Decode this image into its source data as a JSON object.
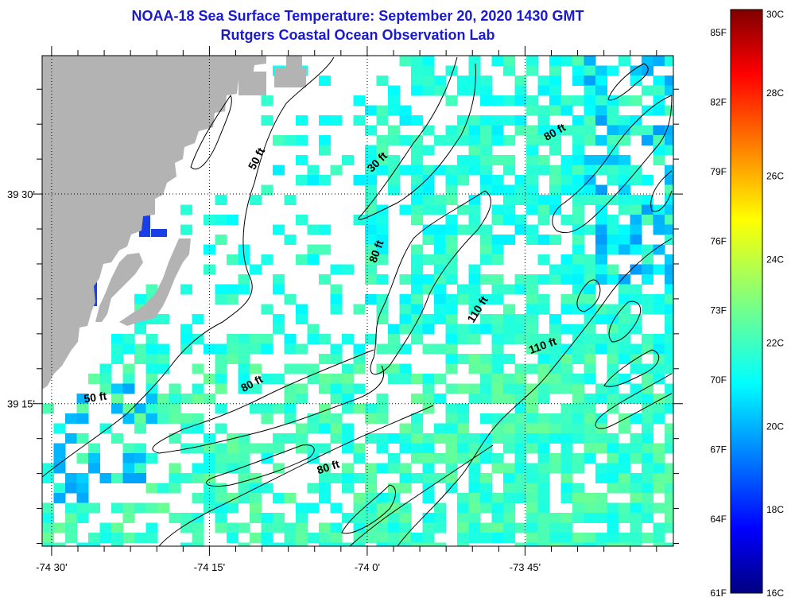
{
  "title": {
    "line1": "NOAA-18 Sea Surface Temperature:  September 20, 2020 1430 GMT",
    "line2": "Rutgers Coastal Ocean Observation Lab"
  },
  "map": {
    "lon_ticks": [
      {
        "value": -74.5,
        "label": "-74 30'"
      },
      {
        "value": -74.25,
        "label": "-74 15'"
      },
      {
        "value": -74.0,
        "label": "-74 0'"
      },
      {
        "value": -73.75,
        "label": "-73 45'"
      }
    ],
    "lat_ticks": [
      {
        "value": 39.5,
        "label": "39 30'"
      },
      {
        "value": 39.25,
        "label": "39 15'"
      }
    ],
    "lon_range": [
      -74.515,
      -73.515
    ],
    "lat_range": [
      39.08,
      39.665
    ],
    "contour_labels": [
      {
        "text": "50 ft",
        "lon": -74.17,
        "lat": 39.54,
        "rotate": -62
      },
      {
        "text": "30 ft",
        "lon": -73.98,
        "lat": 39.535,
        "rotate": -45
      },
      {
        "text": "80 ft",
        "lon": -73.7,
        "lat": 39.57,
        "rotate": -30
      },
      {
        "text": "80 ft",
        "lon": -73.98,
        "lat": 39.43,
        "rotate": -70
      },
      {
        "text": "110 ft",
        "lon": -73.82,
        "lat": 39.36,
        "rotate": -58
      },
      {
        "text": "110 ft",
        "lon": -73.72,
        "lat": 39.315,
        "rotate": -20
      },
      {
        "text": "80 ft",
        "lon": -74.18,
        "lat": 39.27,
        "rotate": -28
      },
      {
        "text": "50 ft",
        "lon": -74.43,
        "lat": 39.253,
        "rotate": -8
      },
      {
        "text": "80 ft",
        "lon": -74.06,
        "lat": 39.17,
        "rotate": -18
      }
    ],
    "colors": {
      "land": "#b3b3b3",
      "no_data": "#ffffff"
    }
  },
  "colorbar": {
    "min_c": 16,
    "max_c": 30,
    "celsius_labels": [
      "30C",
      "28C",
      "26C",
      "24C",
      "22C",
      "20C",
      "18C",
      "16C"
    ],
    "fahrenheit_labels": [
      "85F",
      "82F",
      "79F",
      "76F",
      "73F",
      "70F",
      "67F",
      "64F",
      "61F"
    ],
    "colormap": "jet"
  }
}
